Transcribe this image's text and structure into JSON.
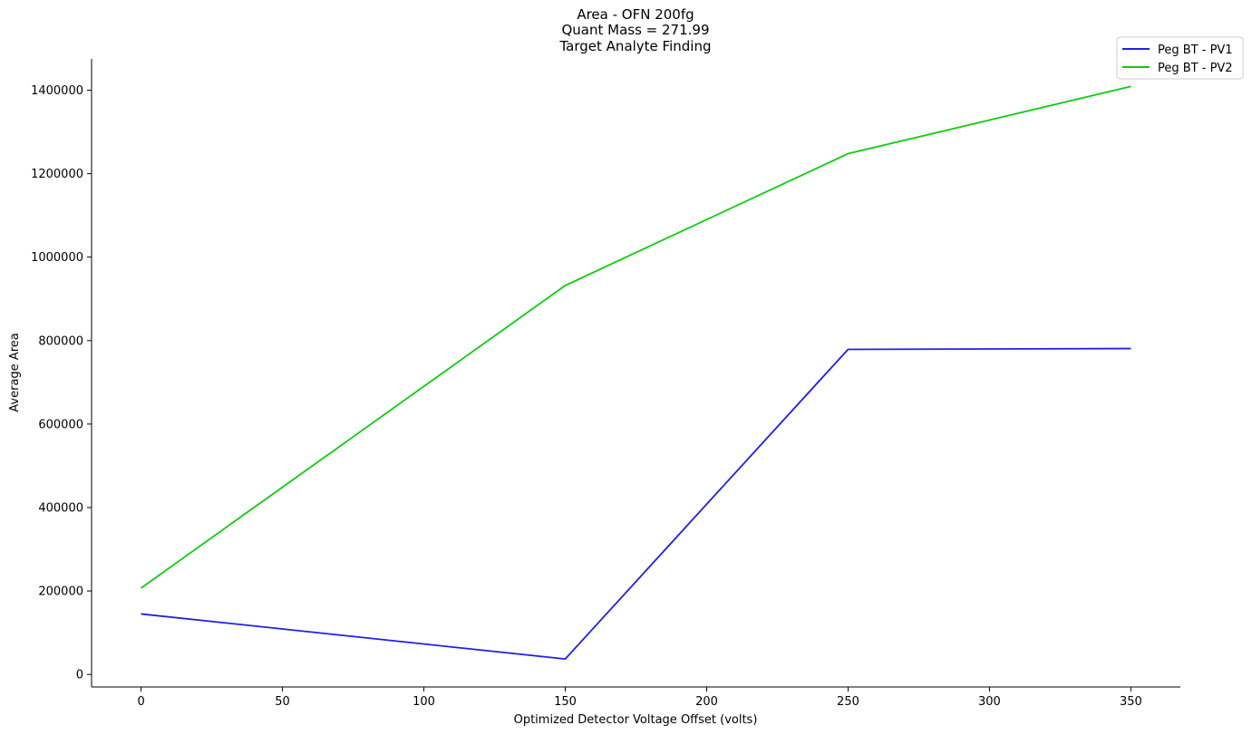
{
  "chart_data": {
    "type": "line",
    "title_lines": [
      "Area - OFN 200fg",
      "Quant Mass = 271.99",
      "Target Analyte Finding"
    ],
    "xlabel": "Optimized Detector Voltage Offset (volts)",
    "ylabel": "Average Area",
    "x": [
      0,
      150,
      250,
      350
    ],
    "xlim": [
      -17.5,
      367.5
    ],
    "ylim": [
      -30000,
      1475000
    ],
    "xticks": [
      0,
      50,
      100,
      150,
      200,
      250,
      300,
      350
    ],
    "xtick_labels": [
      "0",
      "50",
      "100",
      "150",
      "200",
      "250",
      "300",
      "350"
    ],
    "yticks": [
      0,
      200000,
      400000,
      600000,
      800000,
      1000000,
      1200000,
      1400000
    ],
    "ytick_labels": [
      "0",
      "200000",
      "400000",
      "600000",
      "800000",
      "1000000",
      "1200000",
      "1400000"
    ],
    "legend_position": "top-right",
    "series": [
      {
        "name": "Peg BT - PV1",
        "color": "#1f1fe6",
        "values": [
          145000,
          37000,
          779000,
          781000
        ]
      },
      {
        "name": "Peg BT - PV2",
        "color": "#0fcc0f",
        "values": [
          207000,
          932000,
          1248000,
          1409000
        ]
      }
    ]
  }
}
